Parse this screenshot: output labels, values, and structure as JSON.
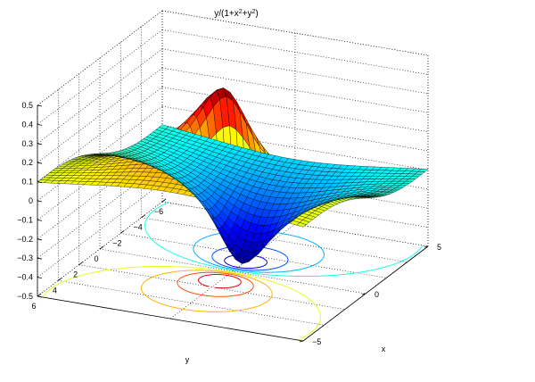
{
  "figure": {
    "title": "y/(1+x²+y²)",
    "title_parts": {
      "base": "y/(1+x",
      "sup1": "2",
      "mid": "+y",
      "sup2": "2",
      "end": ")"
    }
  },
  "chart_data": {
    "type": "surface",
    "title": "y/(1+x²+y²)",
    "function": "y/(1+x^2+y^2)",
    "xlabel": "x",
    "ylabel": "y",
    "zlabel": "",
    "xlim": [
      -5,
      5
    ],
    "ylim": [
      -6,
      6
    ],
    "zlim": [
      -0.5,
      0.5
    ],
    "x_ticks": [
      -5,
      0,
      5
    ],
    "x_tick_labels": [
      "−5",
      "0",
      "5"
    ],
    "y_ticks": [
      -6,
      -4,
      -2,
      0,
      2,
      4,
      6
    ],
    "y_tick_labels": [
      "−6",
      "−4",
      "−2",
      "0",
      "2",
      "4",
      "6"
    ],
    "z_ticks": [
      -0.5,
      -0.4,
      -0.3,
      -0.2,
      -0.1,
      0,
      0.1,
      0.2,
      0.3,
      0.4,
      0.5
    ],
    "z_tick_labels": [
      "−0.5",
      "−0.4",
      "−0.3",
      "−0.2",
      "−0.1",
      "0",
      "0.1",
      "0.2",
      "0.3",
      "0.4",
      "0.5"
    ],
    "grid": true,
    "box": true,
    "colormap": "jet",
    "contour_at_base": true,
    "surface_peak": {
      "x": 0,
      "y": 1,
      "z": 0.5
    },
    "surface_trough": {
      "x": 0,
      "y": -1,
      "z": -0.5
    },
    "contour_levels": [
      -0.4,
      -0.3,
      -0.2,
      -0.1,
      0.1,
      0.2,
      0.3,
      0.4
    ],
    "colors": {
      "mesh": "#000000",
      "grid": "#000000",
      "jet": [
        "#00008f",
        "#0000ff",
        "#0080ff",
        "#00ffff",
        "#80ff80",
        "#ffff00",
        "#ff8000",
        "#ff0000",
        "#800000"
      ]
    }
  }
}
